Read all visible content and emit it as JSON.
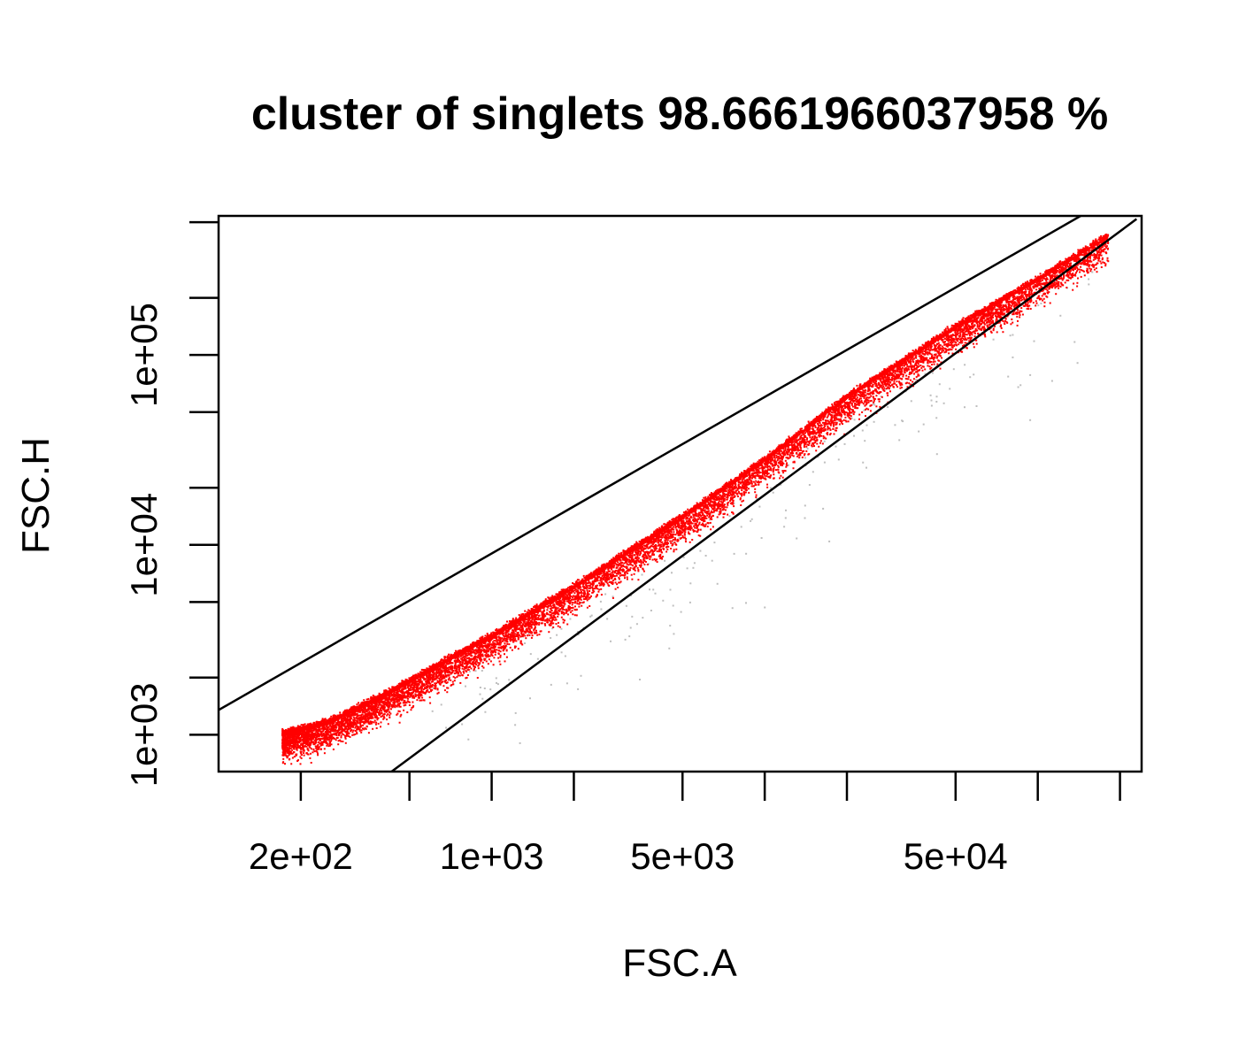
{
  "chart_data": {
    "type": "scatter",
    "title": "cluster of singlets  98.6661966037958 %",
    "xlabel": "FSC.A",
    "ylabel": "FSC.H",
    "x_scale": "log",
    "y_scale": "log",
    "xlim": [
      100,
      240000
    ],
    "ylim": [
      640,
      540000
    ],
    "x_ticks": [
      200,
      500,
      1000,
      2000,
      5000,
      10000,
      20000,
      50000,
      100000,
      200000
    ],
    "x_tick_labels": [
      "2e+02",
      "",
      "1e+03",
      "",
      "5e+03",
      "",
      "",
      "5e+04",
      "",
      ""
    ],
    "y_ticks": [
      1000,
      2000,
      5000,
      10000,
      20000,
      50000,
      100000,
      200000,
      500000
    ],
    "y_tick_labels": [
      "1e+03",
      "",
      "",
      "1e+04",
      "",
      "",
      "1e+05",
      "",
      ""
    ],
    "gate_lines": [
      {
        "name": "upper",
        "points": [
          [
            100,
            1350
          ],
          [
            150000,
            560000
          ]
        ]
      },
      {
        "name": "lower",
        "points": [
          [
            430,
            640
          ],
          [
            230000,
            520000
          ]
        ]
      }
    ],
    "singlet_percentage": 98.6661966037958,
    "series": [
      {
        "population": "singlets",
        "color": "#ff0000",
        "n_points": 16000,
        "x_range": [
          170,
          180000
        ],
        "ridge": [
          [
            170,
            1000
          ],
          [
            250,
            1150
          ],
          [
            400,
            1600
          ],
          [
            700,
            2500
          ],
          [
            1000,
            3300
          ],
          [
            2000,
            6000
          ],
          [
            5000,
            14000
          ],
          [
            10000,
            28000
          ],
          [
            20000,
            60000
          ],
          [
            50000,
            140000
          ],
          [
            100000,
            250000
          ],
          [
            180000,
            420000
          ]
        ]
      },
      {
        "population": "excluded",
        "color": "#bebebe",
        "n_points": 220,
        "x_range": [
          600,
          160000
        ]
      }
    ]
  }
}
